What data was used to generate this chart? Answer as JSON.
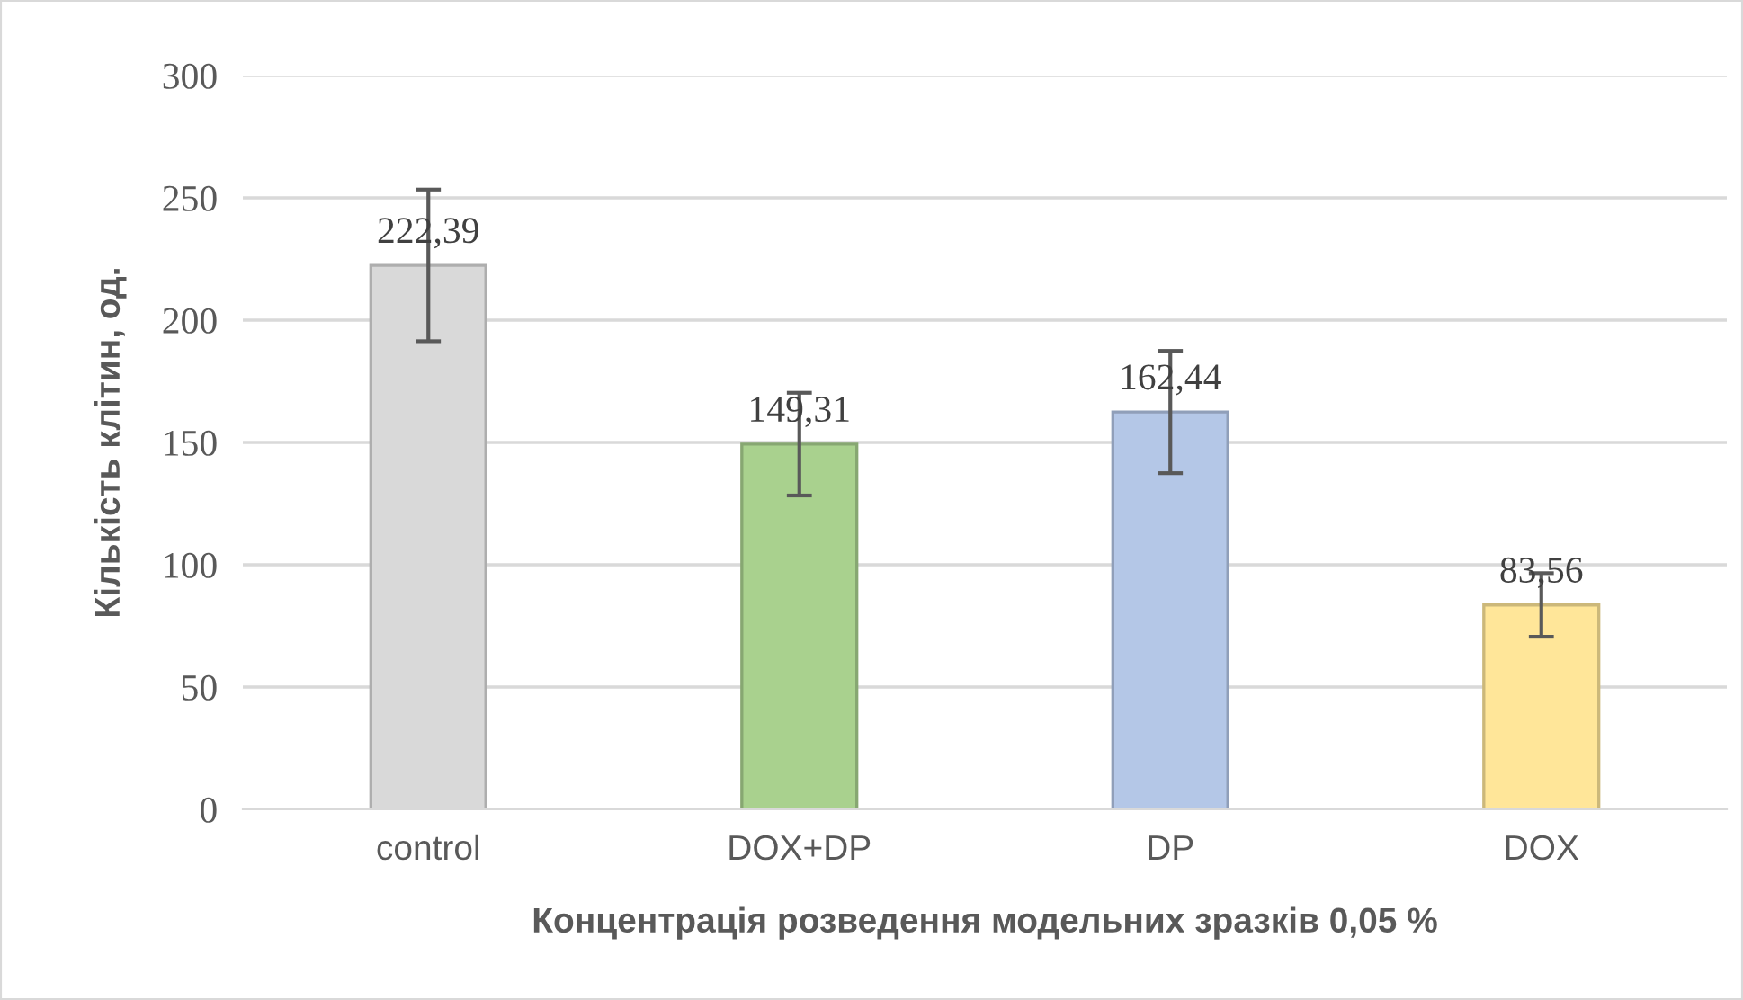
{
  "chart_data": {
    "type": "bar",
    "xlabel": "Концентрація розведення модельних зразків 0,05 %",
    "ylabel": "Кількість клітин, од.",
    "categories": [
      "control",
      "DOX+DP",
      "DP",
      "DOX"
    ],
    "values": [
      222.39,
      149.31,
      162.44,
      83.56
    ],
    "value_labels": [
      "222,39",
      "149,31",
      "162,44",
      "83,56"
    ],
    "errors": [
      31,
      21,
      25,
      13
    ],
    "colors": [
      "#d9d9d9",
      "#a9d18e",
      "#b4c7e7",
      "#ffe699"
    ],
    "ylim": [
      0,
      300
    ],
    "yticks": [
      0,
      50,
      100,
      150,
      200,
      250,
      300
    ],
    "grid": "y"
  }
}
